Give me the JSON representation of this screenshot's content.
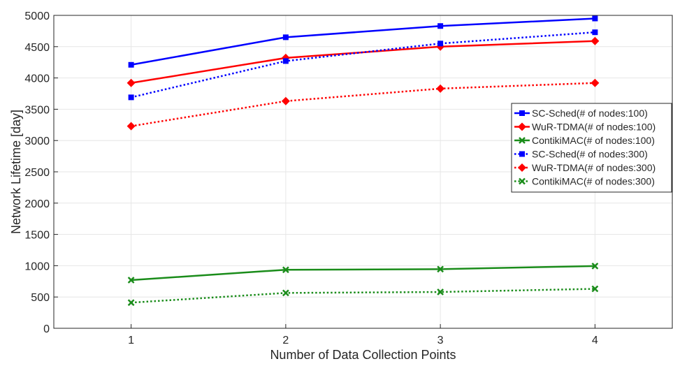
{
  "chart_data": {
    "type": "line",
    "title": "",
    "xlabel": "Number of Data Collection Points",
    "ylabel": "Network Lifetime [day]",
    "x": [
      1,
      2,
      3,
      4
    ],
    "xlim": [
      0.5,
      4.5
    ],
    "ylim": [
      0,
      5000
    ],
    "xticks": [
      "1",
      "2",
      "3",
      "4"
    ],
    "yticks": [
      "0",
      "500",
      "1000",
      "1500",
      "2000",
      "2500",
      "3000",
      "3500",
      "4000",
      "4500",
      "5000"
    ],
    "grid": true,
    "legend_position": "right",
    "series": [
      {
        "name": "SC-Sched(# of nodes:100)",
        "values": [
          4210,
          4650,
          4830,
          4950
        ],
        "color": "#0000ff",
        "line": "solid",
        "marker": "square"
      },
      {
        "name": "WuR-TDMA(# of nodes:100)",
        "values": [
          3920,
          4320,
          4500,
          4590
        ],
        "color": "#ff0000",
        "line": "solid",
        "marker": "diamond"
      },
      {
        "name": "ContikiMAC(# of nodes:100)",
        "values": [
          770,
          935,
          945,
          995
        ],
        "color": "#1a8c1a",
        "line": "solid",
        "marker": "x"
      },
      {
        "name": "SC-Sched(# of nodes:300)",
        "values": [
          3690,
          4270,
          4550,
          4730
        ],
        "color": "#0000ff",
        "line": "dotted",
        "marker": "square"
      },
      {
        "name": "WuR-TDMA(# of nodes:300)",
        "values": [
          3230,
          3630,
          3830,
          3920
        ],
        "color": "#ff0000",
        "line": "dotted",
        "marker": "diamond"
      },
      {
        "name": "ContikiMAC(# of nodes:300)",
        "values": [
          410,
          565,
          580,
          630
        ],
        "color": "#1a8c1a",
        "line": "dotted",
        "marker": "x"
      }
    ]
  }
}
